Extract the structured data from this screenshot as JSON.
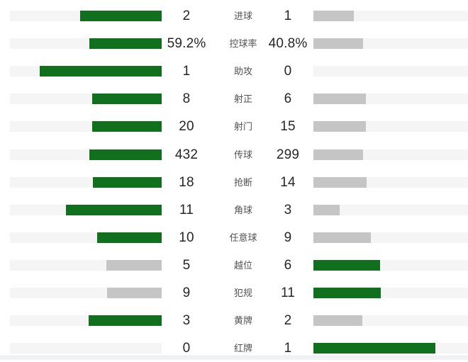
{
  "colors": {
    "highlight_bar": "#11701d",
    "muted_bar": "#c5c5c5",
    "track": "#f5f5f6",
    "value_text": "#262626",
    "label_text": "#525252",
    "footer_band": "#f1f2f4"
  },
  "chart_data": {
    "type": "bar",
    "subtype": "paired-horizontal-stat-comparison",
    "title": "",
    "categories": [
      "进球",
      "控球率",
      "助攻",
      "射正",
      "射门",
      "传球",
      "抢断",
      "角球",
      "任意球",
      "越位",
      "犯规",
      "黄牌",
      "红牌"
    ],
    "series": [
      {
        "name": "left-team",
        "values": [
          2,
          59.2,
          1,
          8,
          20,
          432,
          18,
          11,
          10,
          5,
          9,
          3,
          0
        ],
        "display": [
          "2",
          "59.2%",
          "1",
          "8",
          "20",
          "432",
          "18",
          "11",
          "10",
          "5",
          "9",
          "3",
          "0"
        ]
      },
      {
        "name": "right-team",
        "values": [
          1,
          40.8,
          0,
          6,
          15,
          299,
          14,
          3,
          9,
          6,
          11,
          2,
          1
        ],
        "display": [
          "1",
          "40.8%",
          "0",
          "6",
          "15",
          "299",
          "14",
          "3",
          "9",
          "6",
          "11",
          "2",
          "1"
        ]
      }
    ],
    "bar_rule": "bar width proportional to value/(left+right); side with greater value is green, lesser side is gray; zero value shows no bar",
    "grid": false,
    "legend_position": "none"
  },
  "rows": [
    {
      "label": "进球",
      "home": "2",
      "away": "1",
      "home_num": 2,
      "away_num": 1
    },
    {
      "label": "控球率",
      "home": "59.2%",
      "away": "40.8%",
      "home_num": 59.2,
      "away_num": 40.8
    },
    {
      "label": "助攻",
      "home": "1",
      "away": "0",
      "home_num": 1,
      "away_num": 0
    },
    {
      "label": "射正",
      "home": "8",
      "away": "6",
      "home_num": 8,
      "away_num": 6
    },
    {
      "label": "射门",
      "home": "20",
      "away": "15",
      "home_num": 20,
      "away_num": 15
    },
    {
      "label": "传球",
      "home": "432",
      "away": "299",
      "home_num": 432,
      "away_num": 299
    },
    {
      "label": "抢断",
      "home": "18",
      "away": "14",
      "home_num": 18,
      "away_num": 14
    },
    {
      "label": "角球",
      "home": "11",
      "away": "3",
      "home_num": 11,
      "away_num": 3
    },
    {
      "label": "任意球",
      "home": "10",
      "away": "9",
      "home_num": 10,
      "away_num": 9
    },
    {
      "label": "越位",
      "home": "5",
      "away": "6",
      "home_num": 5,
      "away_num": 6
    },
    {
      "label": "犯规",
      "home": "9",
      "away": "11",
      "home_num": 9,
      "away_num": 11
    },
    {
      "label": "黄牌",
      "home": "3",
      "away": "2",
      "home_num": 3,
      "away_num": 2
    },
    {
      "label": "红牌",
      "home": "0",
      "away": "1",
      "home_num": 0,
      "away_num": 1
    }
  ]
}
